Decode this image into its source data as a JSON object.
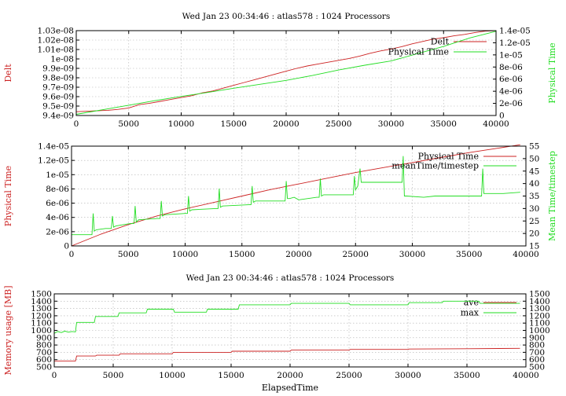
{
  "colors": {
    "red": "#cc2222",
    "green": "#22dd22",
    "axis": "#000000",
    "grid": "#b0b0b0"
  },
  "chart_data": [
    {
      "type": "line",
      "title": "Wed Jan 23 00:34:46 : atlas578 : 1024 Processors",
      "xlabel": "",
      "ylabel": "Delt",
      "y2label": "Physical Time",
      "xlim": [
        0,
        40000
      ],
      "ylim": [
        9.4e-09,
        1.03e-08
      ],
      "y2lim": [
        0,
        1.4e-05
      ],
      "xticks": [
        "0",
        "5000",
        "10000",
        "15000",
        "20000",
        "25000",
        "30000",
        "35000",
        "40000"
      ],
      "yticks": [
        "9.4e-09",
        "9.5e-09",
        "9.6e-09",
        "9.7e-09",
        "9.8e-09",
        "9.9e-09",
        "1e-08",
        "1.01e-08",
        "1.02e-08",
        "1.03e-08"
      ],
      "y2ticks": [
        "0",
        "2e-06",
        "4e-06",
        "6e-06",
        "8e-06",
        "1e-05",
        "1.2e-05",
        "1.4e-05"
      ],
      "legend_position": "top-right",
      "grid": true,
      "series": [
        {
          "name": "Delt",
          "axis": "y",
          "color": "red",
          "x": [
            0,
            1000,
            2000,
            3000,
            4000,
            5000,
            6000,
            7000,
            8000,
            9000,
            10000,
            11000,
            12000,
            13000,
            14000,
            15000,
            16000,
            17000,
            18000,
            19000,
            20000,
            21000,
            22000,
            23000,
            24000,
            25000,
            26000,
            27000,
            28000,
            29000,
            30000,
            31000,
            32000,
            33000,
            34000,
            35000,
            36000,
            37000,
            38000,
            39000,
            40000
          ],
          "y": [
            9.44e-09,
            9.445e-09,
            9.45e-09,
            9.455e-09,
            9.465e-09,
            9.48e-09,
            9.515e-09,
            9.53e-09,
            9.55e-09,
            9.57e-09,
            9.59e-09,
            9.61e-09,
            9.64e-09,
            9.66e-09,
            9.69e-09,
            9.72e-09,
            9.75e-09,
            9.78e-09,
            9.81e-09,
            9.84e-09,
            9.87e-09,
            9.9e-09,
            9.925e-09,
            9.945e-09,
            9.965e-09,
            9.985e-09,
            1.0005e-08,
            1.003e-08,
            1.006e-08,
            1.0085e-08,
            1.0105e-08,
            1.013e-08,
            1.016e-08,
            1.0185e-08,
            1.021e-08,
            1.0225e-08,
            1.0245e-08,
            1.026e-08,
            1.028e-08,
            1.0295e-08,
            1.03e-08
          ]
        },
        {
          "name": "Physical Time",
          "axis": "y2",
          "color": "green",
          "x": [
            0,
            2500,
            5000,
            7500,
            10000,
            12500,
            15000,
            17500,
            20000,
            22500,
            25000,
            27500,
            30000,
            32500,
            35000,
            37500,
            40000
          ],
          "y": [
            2e-07,
            9.5e-07,
            1.7e-06,
            2.45e-06,
            3.15e-06,
            3.8e-06,
            4.5e-06,
            5.15e-06,
            5.8e-06,
            6.6e-06,
            7.5e-06,
            8.3e-06,
            9e-06,
            1.02e-05,
            1.14e-05,
            1.28e-05,
            1.39e-05
          ]
        }
      ]
    },
    {
      "type": "line",
      "title": "",
      "xlabel": "",
      "ylabel": "Physical Time",
      "y2label": "Mean Time/timestep",
      "xlim": [
        0,
        40000
      ],
      "ylim": [
        0,
        1.4e-05
      ],
      "y2lim": [
        15,
        55
      ],
      "xticks": [
        "0",
        "5000",
        "10000",
        "15000",
        "20000",
        "25000",
        "30000",
        "35000",
        "40000"
      ],
      "yticks": [
        "0",
        "2e-06",
        "4e-06",
        "6e-06",
        "8e-06",
        "1e-05",
        "1.2e-05",
        "1.4e-05"
      ],
      "y2ticks": [
        "15",
        "20",
        "25",
        "30",
        "35",
        "40",
        "45",
        "50",
        "55"
      ],
      "legend_position": "top-right",
      "grid": true,
      "series": [
        {
          "name": "Physical Time",
          "axis": "y",
          "color": "red",
          "x": [
            0,
            2500,
            5000,
            7500,
            10000,
            12500,
            15000,
            17500,
            20000,
            22500,
            25000,
            27500,
            30000,
            32500,
            35000,
            37500,
            39500
          ],
          "y": [
            0,
            1.6e-06,
            3e-06,
            4.2e-06,
            5.2e-06,
            6.1e-06,
            7e-06,
            7.9e-06,
            8.7e-06,
            9.5e-06,
            1.03e-05,
            1.1e-05,
            1.17e-05,
            1.24e-05,
            1.31e-05,
            1.37e-05,
            1.42e-05
          ]
        },
        {
          "name": "meanTime/timestep",
          "axis": "y2",
          "color": "green",
          "x": [
            0,
            1200,
            1800,
            1900,
            2000,
            2200,
            3000,
            3500,
            3600,
            3700,
            3900,
            5200,
            5500,
            5600,
            5700,
            5900,
            7600,
            7800,
            7900,
            8000,
            8200,
            10000,
            10200,
            10300,
            10400,
            10600,
            12700,
            12900,
            13000,
            13100,
            13300,
            15600,
            15800,
            15900,
            16000,
            16200,
            18600,
            18800,
            18900,
            19000,
            19200,
            19600,
            20000,
            21600,
            21800,
            21900,
            22000,
            22200,
            24600,
            24800,
            24900,
            25000,
            25200,
            25400,
            25500,
            25700,
            26000,
            28900,
            29100,
            29200,
            29300,
            29500,
            31000,
            32000,
            35900,
            36100,
            36200,
            36300,
            36500,
            38000,
            39500
          ],
          "y": [
            19.5,
            19.5,
            19.5,
            28,
            21,
            21.5,
            22,
            22,
            27,
            22.5,
            23,
            24,
            24,
            31,
            24.5,
            25.5,
            26,
            26,
            33,
            27,
            27.5,
            28,
            28,
            35,
            29,
            29.5,
            30,
            30,
            38,
            30.5,
            31,
            31.5,
            31.5,
            39,
            32.5,
            33,
            33,
            33,
            41,
            34,
            34,
            34.5,
            33.5,
            34.5,
            34.5,
            42,
            35,
            35.5,
            35.5,
            35.5,
            43,
            37.5,
            39,
            46,
            40.5,
            40.5,
            40.5,
            40.5,
            40.5,
            51,
            35,
            35,
            34.5,
            35,
            35,
            35,
            46,
            36,
            36,
            36,
            36.5
          ]
        }
      ]
    },
    {
      "type": "line",
      "title": "Wed Jan 23 00:34:46 : atlas578 : 1024 Processors",
      "xlabel": "ElapsedTime",
      "ylabel": "Memory usage [MB]",
      "y2label": "",
      "xlim": [
        0,
        40000
      ],
      "ylim": [
        500,
        1500
      ],
      "y2lim": [
        500,
        1500
      ],
      "xticks": [
        "0",
        "5000",
        "10000",
        "15000",
        "20000",
        "25000",
        "30000",
        "35000",
        "40000"
      ],
      "yticks": [
        "500",
        "600",
        "700",
        "800",
        "900",
        "1000",
        "1100",
        "1200",
        "1300",
        "1400",
        "1500"
      ],
      "y2ticks": [
        "500",
        "600",
        "700",
        "800",
        "900",
        "1000",
        "1100",
        "1200",
        "1300",
        "1400",
        "1500"
      ],
      "legend_position": "top-right",
      "grid": true,
      "series": [
        {
          "name": "ave",
          "axis": "y",
          "color": "red",
          "x": [
            0,
            1800,
            1900,
            3500,
            3600,
            5500,
            5600,
            10000,
            10100,
            15000,
            15100,
            20000,
            20100,
            25000,
            25100,
            30000,
            30100,
            35000,
            39500
          ],
          "y": [
            580,
            580,
            650,
            650,
            660,
            660,
            680,
            680,
            700,
            700,
            715,
            715,
            730,
            730,
            740,
            740,
            745,
            750,
            755
          ]
        },
        {
          "name": "max",
          "axis": "y",
          "color": "green",
          "x": [
            0,
            300,
            600,
            900,
            1200,
            1500,
            1800,
            1900,
            3400,
            3500,
            5400,
            5500,
            7800,
            7900,
            10100,
            10200,
            12900,
            13000,
            15600,
            15700,
            20000,
            20100,
            25000,
            25100,
            30000,
            30100,
            32900,
            33000,
            36000,
            36100,
            39500
          ],
          "y": [
            960,
            985,
            970,
            990,
            975,
            985,
            980,
            1110,
            1110,
            1190,
            1190,
            1240,
            1240,
            1290,
            1290,
            1250,
            1250,
            1290,
            1290,
            1350,
            1350,
            1370,
            1370,
            1350,
            1350,
            1380,
            1380,
            1400,
            1400,
            1370,
            1370
          ]
        }
      ]
    }
  ]
}
